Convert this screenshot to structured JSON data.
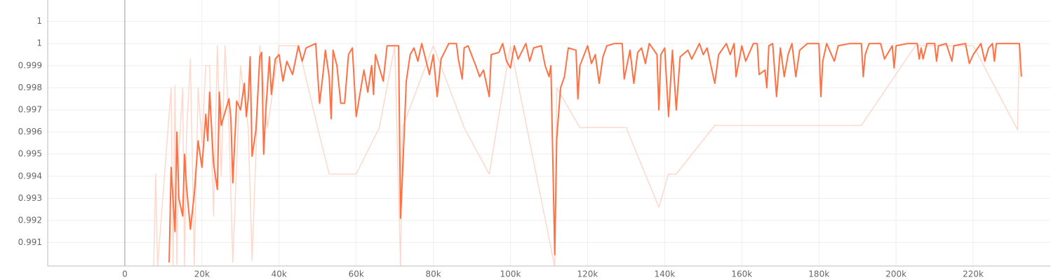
{
  "chart_data": {
    "type": "line",
    "xlim": [
      -20000,
      240000
    ],
    "ylim": [
      0.98994,
      1.00197
    ],
    "xticks": [
      0,
      {
        "value": 20000,
        "label": "20k"
      },
      {
        "value": 40000,
        "label": "40k"
      },
      {
        "value": 60000,
        "label": "60k"
      },
      {
        "value": 80000,
        "label": "80k"
      },
      {
        "value": 100000,
        "label": "100k"
      },
      {
        "value": 120000,
        "label": "120k"
      },
      {
        "value": 140000,
        "label": "140k"
      },
      {
        "value": 160000,
        "label": "160k"
      },
      {
        "value": 180000,
        "label": "180k"
      },
      {
        "value": 200000,
        "label": "200k"
      },
      {
        "value": 220000,
        "label": "220k"
      }
    ],
    "yticks": [
      0.991,
      0.992,
      0.993,
      0.994,
      0.995,
      0.996,
      0.997,
      0.998,
      0.999,
      1,
      {
        "value": 1.001,
        "label": "1"
      }
    ],
    "grid": true,
    "series": [
      {
        "color": "#fcd9cc",
        "x": [
          7500,
          8000,
          8500,
          12000,
          12500,
          13000,
          13500,
          14000,
          15000,
          15500,
          16000,
          17000,
          18000,
          19000,
          20000,
          21000,
          22000,
          23000,
          24000,
          25000,
          26000,
          27000,
          28000,
          30000,
          32000,
          33000,
          35000,
          37000,
          40000,
          45000,
          50000,
          53000,
          56000,
          60000,
          66000,
          70000,
          71500,
          72000,
          80000,
          88000,
          94500,
          100000,
          111500,
          112000,
          118000,
          124000,
          130000,
          138500,
          141000,
          143000,
          153000,
          158000,
          165000,
          170000,
          174000,
          181000,
          191000,
          205000,
          220000,
          231500,
          232000
        ],
        "values": [
          0.9899,
          0.9941,
          0.9899,
          0.998,
          0.9899,
          0.9981,
          0.99,
          0.9951,
          0.998,
          0.9899,
          0.9959,
          0.9993,
          0.99,
          0.998,
          0.9955,
          0.999,
          0.999,
          0.9922,
          0.9999,
          0.994,
          0.9999,
          0.9962,
          0.9901,
          0.999,
          0.9962,
          0.9902,
          0.9999,
          0.9962,
          0.9999,
          0.9999,
          0.9962,
          0.9941,
          0.9941,
          0.9941,
          0.9962,
          0.9999,
          0.9899,
          0.9962,
          0.9999,
          0.9962,
          0.9941,
          0.9999,
          0.9899,
          0.998,
          0.9962,
          0.9962,
          0.9962,
          0.9926,
          0.9941,
          0.9941,
          0.9963,
          0.9963,
          0.9963,
          0.9963,
          0.9963,
          0.9963,
          0.9963,
          0.9999,
          0.9999,
          0.9961,
          1
        ]
      },
      {
        "color": "#ff7043",
        "x": [
          11500,
          12000,
          13000,
          13500,
          14000,
          15000,
          15500,
          16000,
          17000,
          18000,
          19000,
          20000,
          21000,
          21500,
          22000,
          23000,
          24000,
          24500,
          25000,
          26000,
          27000,
          27500,
          28000,
          29000,
          30000,
          31000,
          31500,
          32000,
          32500,
          33000,
          34000,
          35000,
          35500,
          36000,
          36500,
          37000,
          37500,
          38000,
          39000,
          40000,
          41000,
          42000,
          43500,
          45000,
          46000,
          47000,
          49500,
          50500,
          51500,
          52000,
          53000,
          53500,
          54000,
          55000,
          56000,
          57000,
          58000,
          59000,
          60000,
          62000,
          63000,
          64000,
          64500,
          65000,
          67000,
          68000,
          70000,
          71000,
          71500,
          72000,
          73000,
          74000,
          75000,
          76000,
          77000,
          79000,
          80000,
          81000,
          82000,
          84000,
          86000,
          86500,
          87500,
          88000,
          89000,
          91000,
          92000,
          93000,
          94500,
          95000,
          97000,
          98000,
          99000,
          100000,
          101000,
          102000,
          104000,
          105000,
          106000,
          108000,
          109000,
          110000,
          110500,
          111500,
          112000,
          113000,
          114000,
          115000,
          117000,
          117500,
          118000,
          120000,
          121000,
          122000,
          123000,
          124000,
          125000,
          127000,
          129000,
          129500,
          131000,
          132000,
          133000,
          134000,
          135000,
          136000,
          138000,
          138500,
          139000,
          140000,
          141000,
          142000,
          143000,
          144000,
          146000,
          147000,
          149000,
          150000,
          151000,
          152000,
          153000,
          154000,
          156000,
          157000,
          158000,
          158500,
          160000,
          161000,
          163000,
          164000,
          164500,
          166000,
          166500,
          167000,
          168000,
          169000,
          170000,
          171000,
          172000,
          173000,
          174000,
          175000,
          177000,
          180000,
          180500,
          181000,
          182000,
          184000,
          185000,
          188000,
          191000,
          191500,
          192000,
          193000,
          196000,
          197000,
          199000,
          199500,
          200000,
          203000,
          205500,
          206000,
          206500,
          207000,
          208000,
          210000,
          210500,
          211000,
          213000,
          214500,
          215000,
          218000,
          219000,
          220000,
          222000,
          223000,
          224000,
          225000,
          225500,
          226000,
          232000,
          232500
        ],
        "values": [
          0.9901,
          0.9944,
          0.9915,
          0.996,
          0.993,
          0.9922,
          0.995,
          0.9935,
          0.9916,
          0.9932,
          0.9956,
          0.9944,
          0.9968,
          0.9956,
          0.9978,
          0.9946,
          0.9934,
          0.9978,
          0.9963,
          0.9969,
          0.9975,
          0.9966,
          0.9937,
          0.9974,
          0.997,
          0.9982,
          0.9967,
          0.9975,
          0.9994,
          0.9949,
          0.9961,
          0.9994,
          0.9996,
          0.995,
          0.9968,
          0.9981,
          0.9994,
          0.9977,
          0.9993,
          0.9995,
          0.9983,
          0.9992,
          0.9986,
          0.9999,
          0.9992,
          0.9998,
          1,
          0.9973,
          0.9988,
          0.9997,
          0.9985,
          0.9966,
          0.9997,
          0.999,
          0.9973,
          0.9973,
          0.9995,
          0.9998,
          0.9967,
          0.9988,
          0.9978,
          0.999,
          0.9977,
          0.9995,
          0.9983,
          0.9999,
          0.9999,
          0.9999,
          0.9921,
          0.994,
          0.9983,
          0.9995,
          0.9998,
          0.9992,
          1,
          0.9986,
          0.9995,
          0.9976,
          0.9993,
          1,
          1,
          0.9993,
          0.9984,
          0.9998,
          0.9999,
          0.999,
          0.9985,
          0.9988,
          0.9976,
          0.9995,
          0.9996,
          1,
          0.9992,
          0.9989,
          0.9999,
          0.9993,
          1,
          0.9992,
          0.9998,
          0.9999,
          0.999,
          0.9985,
          0.999,
          0.99045,
          0.9957,
          0.998,
          0.9985,
          0.9998,
          0.9997,
          0.9975,
          0.999,
          0.9999,
          0.9991,
          0.9995,
          0.9982,
          0.9994,
          0.9999,
          1,
          1,
          0.9984,
          0.9997,
          0.9982,
          0.9996,
          0.9998,
          0.9991,
          1,
          0.9995,
          0.997,
          0.9995,
          0.9998,
          0.9967,
          0.9997,
          0.997,
          0.9994,
          0.9997,
          0.9993,
          1,
          0.9995,
          0.9998,
          0.999,
          0.9982,
          0.9995,
          1,
          0.9995,
          1,
          0.9985,
          0.9999,
          0.9992,
          1,
          1,
          0.9986,
          0.9988,
          0.998,
          0.9999,
          1,
          0.9976,
          0.9998,
          0.9985,
          0.9995,
          1,
          0.9985,
          0.9997,
          1,
          1,
          0.9976,
          0.9992,
          1,
          0.9992,
          0.9999,
          1,
          1,
          0.9985,
          0.9995,
          1,
          1,
          0.9993,
          0.9999,
          0.9989,
          0.9999,
          1,
          1,
          0.9993,
          0.9998,
          0.9993,
          1,
          1,
          0.9992,
          0.9999,
          1,
          0.9992,
          0.9999,
          1,
          0.9991,
          0.9995,
          1,
          0.9992,
          0.9998,
          1,
          0.9992,
          1,
          1,
          0.9985
        ]
      }
    ]
  }
}
